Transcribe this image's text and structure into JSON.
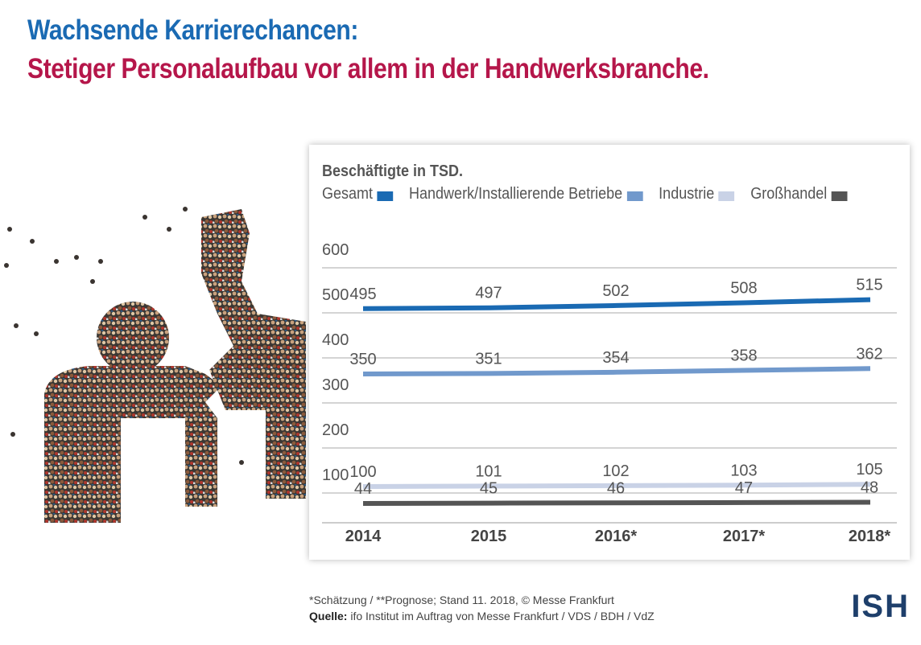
{
  "title": {
    "line1": "Wachsende Karrierechancen:",
    "line2": "Stetiger Personalaufbau vor allem in der Handwerksbranche."
  },
  "colors": {
    "title_line1": "#1a6ab3",
    "title_line2": "#b5164a",
    "logo": "#1e3f6b",
    "gesamt": "#1a6ab3",
    "handwerk": "#7199cc",
    "industrie": "#c9d2e6",
    "grosshandel": "#555555"
  },
  "chart_data": {
    "type": "line",
    "title": "Beschäftigte in TSD.",
    "categories": [
      "2014",
      "2015",
      "2016*",
      "2017*",
      "2018*"
    ],
    "ylim": [
      100,
      600
    ],
    "yticks": [
      100,
      200,
      300,
      400,
      500,
      600
    ],
    "grid": true,
    "legend_position": "top",
    "series": [
      {
        "name": "Gesamt",
        "values": [
          495,
          497,
          502,
          508,
          515
        ],
        "color": "#1a6ab3"
      },
      {
        "name": "Handwerk/Installierende Betriebe",
        "values": [
          350,
          351,
          354,
          358,
          362
        ],
        "color": "#7199cc"
      },
      {
        "name": "Industrie",
        "values": [
          100,
          101,
          102,
          103,
          105
        ],
        "color": "#c9d2e6"
      },
      {
        "name": "Großhandel",
        "values": [
          44,
          45,
          46,
          47,
          48
        ],
        "color": "#555555"
      }
    ]
  },
  "footnote": {
    "line1": "*Schätzung / **Prognose; Stand 11. 2018, © Messe Frankfurt",
    "source_label": "Quelle:",
    "source_text": " ifo Institut im Auftrag von Messe Frankfurt / VDS / BDH / VdZ"
  },
  "logo": "ISH"
}
